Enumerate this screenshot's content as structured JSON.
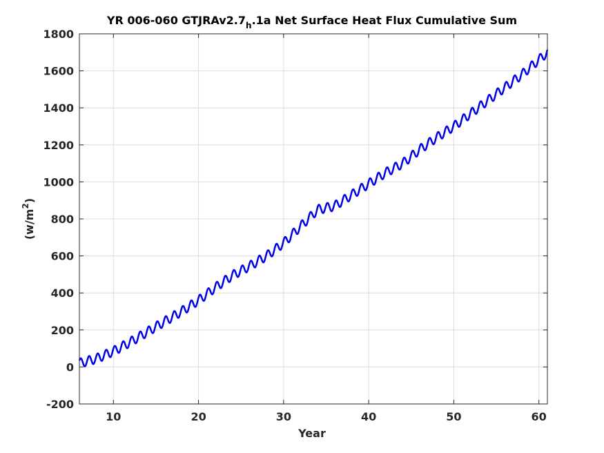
{
  "chart_data": {
    "type": "line",
    "title": "YR 006-060 GTJRAv2.7",
    "title_subscript": "h",
    "title_suffix": ".1a Net Surface Heat Flux  Cumulative Sum",
    "xlabel": "Year",
    "ylabel": "(w/m",
    "ylabel_superscript": "2",
    "ylabel_suffix": ")",
    "xlim": [
      6,
      61
    ],
    "ylim": [
      -200,
      1800
    ],
    "xticks": [
      10,
      20,
      30,
      40,
      50,
      60
    ],
    "yticks": [
      -200,
      0,
      200,
      400,
      600,
      800,
      1000,
      1200,
      1400,
      1600,
      1800
    ],
    "grid": true,
    "line_color": "#0000e6",
    "seasonal_amplitude": 25,
    "series": [
      {
        "x": [
          6,
          8,
          10,
          12,
          14,
          16,
          18,
          20,
          22,
          24,
          26,
          28,
          30,
          32,
          34,
          36,
          38,
          40,
          42,
          44,
          46,
          48,
          50,
          52,
          54,
          56,
          58,
          60,
          61
        ],
        "values": [
          20,
          45,
          85,
          135,
          190,
          245,
          300,
          360,
          430,
          495,
          545,
          600,
          670,
          760,
          850,
          870,
          930,
          990,
          1050,
          1100,
          1175,
          1240,
          1300,
          1370,
          1440,
          1510,
          1580,
          1660,
          1700
        ]
      }
    ]
  }
}
